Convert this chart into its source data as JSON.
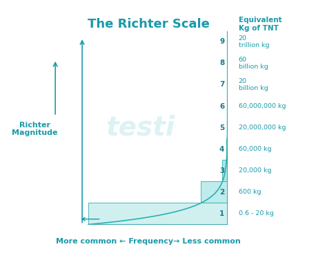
{
  "title": "The Richter Scale",
  "title_color": "#1a9aaa",
  "title_fontsize": 13,
  "richter_label": "Richter\nMagnitude",
  "freq_label": "More common ← Frequency→ Less common",
  "equiv_label": "Equivalent\nKg of TNT",
  "magnitudes": [
    1,
    2,
    3,
    4,
    5,
    6,
    7,
    8,
    9
  ],
  "tnt_labels": [
    "0.6 - 20 kg",
    "600 kg",
    "20,000 kg",
    "60,000 kg",
    "20,000,000 kg",
    "60,000,000 kg",
    "20\nbillion kg",
    "60\nbillion kg",
    "20\ntrillion kg"
  ],
  "bar_color_top": "#3cc8c8",
  "bar_color_bottom": "#d0f0f0",
  "bar_edge_color": "#2ab0b0",
  "background_color": "#ffffff",
  "text_color": "#1a9aaa",
  "arrow_color": "#1a9aaa",
  "watermark_color": "#ddf2f5",
  "curve_exponent": 0.72,
  "curve_scale": 0.88
}
